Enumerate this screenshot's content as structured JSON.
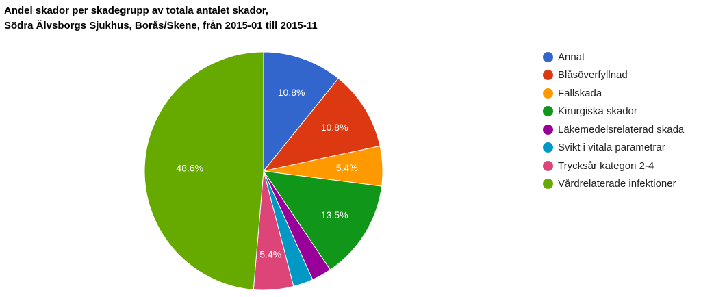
{
  "chart_data": {
    "type": "pie",
    "title": "Andel skador per skadegrupp av totala antalet skador,",
    "subtitle": "Södra Älvsborgs Sjukhus, Borås/Skene, från 2015-01 till 2015-11",
    "legend_position": "right",
    "start_angle": "12 o'clock, clockwise",
    "slices": [
      {
        "label": "Annat",
        "value": 10.8,
        "color": "#3366cc",
        "data_label": "10.8%"
      },
      {
        "label": "Blåsöverfyllnad",
        "value": 10.8,
        "color": "#dc3912",
        "data_label": "10.8%"
      },
      {
        "label": "Fallskada",
        "value": 5.4,
        "color": "#ff9900",
        "data_label": "5.4%"
      },
      {
        "label": "Kirurgiska skador",
        "value": 13.5,
        "color": "#109618",
        "data_label": "13.5%"
      },
      {
        "label": "Läkemedelsrelaterad skada",
        "value": 2.7,
        "color": "#990099",
        "data_label": ""
      },
      {
        "label": "Svikt i vitala parametrar",
        "value": 2.7,
        "color": "#0099c6",
        "data_label": ""
      },
      {
        "label": "Trycksår kategori 2-4",
        "value": 5.4,
        "color": "#dd4477",
        "data_label": "5.4%"
      },
      {
        "label": "Vårdrelaterade infektioner",
        "value": 48.6,
        "color": "#66aa00",
        "data_label": "48.6%"
      }
    ]
  }
}
